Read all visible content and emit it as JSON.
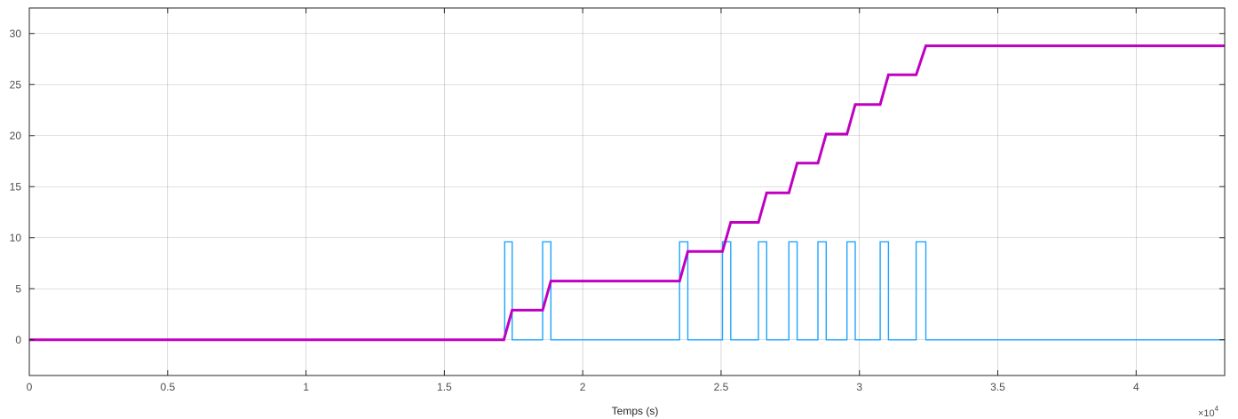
{
  "chart_data": {
    "type": "line",
    "title": "",
    "xlabel": "Temps (s)",
    "ylabel": "",
    "xlim": [
      0,
      43200
    ],
    "ylim": [
      -3.5,
      32.5
    ],
    "x_tick_values": [
      0,
      5000,
      10000,
      15000,
      20000,
      25000,
      30000,
      35000,
      40000
    ],
    "x_tick_labels": [
      "0",
      "0.5",
      "1",
      "1.5",
      "2",
      "2.5",
      "3",
      "3.5",
      "4"
    ],
    "x_exponent_base": "×10",
    "x_exponent_power": "4",
    "y_ticks": [
      0,
      5,
      10,
      15,
      20,
      25,
      30
    ],
    "grid": true,
    "legend": "none",
    "colors": {
      "axis": "#262626",
      "grid": "#8c8c8c",
      "pulse": "#1ea5ff",
      "cumulative": "#c000c0"
    },
    "series": [
      {
        "color": "#1ea5ff",
        "style": "step",
        "x": [
          0,
          17180,
          17180,
          17450,
          17450,
          18550,
          18550,
          18850,
          18850,
          23500,
          23500,
          23800,
          23800,
          25050,
          25050,
          25350,
          25350,
          26350,
          26350,
          26650,
          26650,
          27450,
          27450,
          27750,
          27750,
          28500,
          28500,
          28800,
          28800,
          29550,
          29550,
          29850,
          29850,
          30750,
          30750,
          31050,
          31050,
          32050,
          32050,
          32400,
          32400,
          43200
        ],
        "y": [
          0,
          0,
          9.6,
          9.6,
          0,
          0,
          9.6,
          9.6,
          0,
          0,
          9.6,
          9.6,
          0,
          0,
          9.6,
          9.6,
          0,
          0,
          9.6,
          9.6,
          0,
          0,
          9.6,
          9.6,
          0,
          0,
          9.6,
          9.6,
          0,
          0,
          9.6,
          9.6,
          0,
          0,
          9.6,
          9.6,
          0,
          0,
          9.6,
          9.6,
          0,
          0
        ]
      },
      {
        "color": "#c000c0",
        "style": "line",
        "x": [
          0,
          17150,
          17450,
          18550,
          18850,
          23500,
          23800,
          25050,
          25350,
          26350,
          26650,
          27450,
          27750,
          28500,
          28800,
          29550,
          29850,
          30750,
          31050,
          32050,
          32400,
          43200
        ],
        "y": [
          0,
          0,
          2.9,
          2.9,
          5.75,
          5.75,
          8.65,
          8.65,
          11.5,
          11.5,
          14.4,
          14.4,
          17.3,
          17.3,
          20.15,
          20.15,
          23.05,
          23.05,
          25.95,
          25.95,
          28.8,
          28.8
        ]
      }
    ]
  }
}
